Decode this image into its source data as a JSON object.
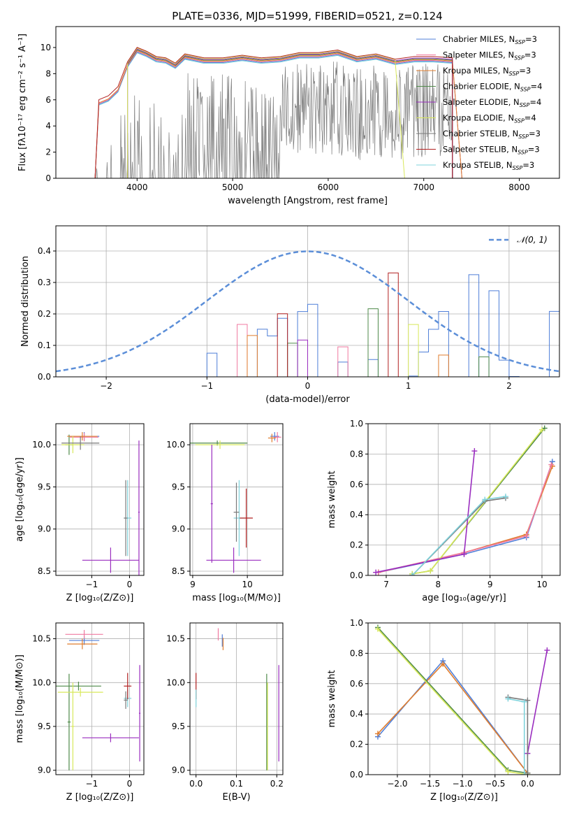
{
  "figure": {
    "title": "PLATE=0336, MJD=51999, FIBERID=0521, z=0.124"
  },
  "colors": {
    "Chabrier MILES": "#4f7fd8",
    "Salpeter MILES": "#f07aa0",
    "Kroupa MILES": "#e07d2e",
    "Chabrier ELODIE": "#4f8a4a",
    "Salpeter ELODIE": "#9a2dbf",
    "Kroupa ELODIE": "#d8e85a",
    "Chabrier STELIB": "#7a7a7a",
    "Salpeter STELIB": "#b22222",
    "Kroupa STELIB": "#7fd3dc",
    "normal": "#5b8ed8",
    "grid": "#b0b0b0"
  },
  "chart_data": [
    {
      "type": "line",
      "panel": "spectrum",
      "xlabel": "wavelength [Angstrom, rest frame]",
      "ylabel": "Flux [fλ10⁻¹⁷ erg cm⁻² s⁻¹ A⁻¹]",
      "xlim": [
        3150,
        8420
      ],
      "ylim": [
        0,
        11.6
      ],
      "xticks": [
        4000,
        5000,
        6000,
        7000,
        8000
      ],
      "yticks": [
        0,
        2,
        4,
        6,
        8,
        10
      ],
      "grid": false,
      "legend_position": "upper right",
      "data_wavelength": [
        3600,
        3700,
        3800,
        3900,
        4000,
        4100,
        4200,
        4300,
        4400,
        4500,
        4700,
        4900,
        5100,
        5300,
        5500,
        5700,
        5900,
        6100,
        6300,
        6500,
        6700,
        6900,
        7100,
        7300
      ],
      "data_flux": [
        5.8,
        6.4,
        7.2,
        8.6,
        9.4,
        9.8,
        9.3,
        9.0,
        8.4,
        9.3,
        8.9,
        9.2,
        9.3,
        9.0,
        9.2,
        9.6,
        9.4,
        9.6,
        9.0,
        9.4,
        9.1,
        9.3,
        9.4,
        9.4
      ],
      "model_flux": [
        5.8,
        6.1,
        6.8,
        8.7,
        9.8,
        9.5,
        9.1,
        9.0,
        8.6,
        9.3,
        9.0,
        9.0,
        9.2,
        9.0,
        9.1,
        9.4,
        9.4,
        9.6,
        9.1,
        9.3,
        8.9,
        9.1,
        9.1,
        9.0
      ],
      "series": [
        {
          "name": "Chabrier MILES, N_SSP=3",
          "label_main": "Chabrier MILES, N",
          "label_sub": "SSP",
          "label_tail": "=3",
          "color_key": "Chabrier MILES"
        },
        {
          "name": "Salpeter MILES, N_SSP=3",
          "label_main": "Salpeter MILES, N",
          "label_sub": "SSP",
          "label_tail": "=3",
          "color_key": "Salpeter MILES"
        },
        {
          "name": "Kroupa MILES, N_SSP=3",
          "label_main": "Kroupa MILES, N",
          "label_sub": "SSP",
          "label_tail": "=3",
          "color_key": "Kroupa MILES"
        },
        {
          "name": "Chabrier ELODIE, N_SSP=4",
          "label_main": "Chabrier ELODIE, N",
          "label_sub": "SSP",
          "label_tail": "=4",
          "color_key": "Chabrier ELODIE"
        },
        {
          "name": "Salpeter ELODIE, N_SSP=4",
          "label_main": "Salpeter ELODIE, N",
          "label_sub": "SSP",
          "label_tail": "=4",
          "color_key": "Salpeter ELODIE"
        },
        {
          "name": "Kroupa ELODIE, N_SSP=4",
          "label_main": "Kroupa ELODIE, N",
          "label_sub": "SSP",
          "label_tail": "=4",
          "color_key": "Kroupa ELODIE"
        },
        {
          "name": "Chabrier STELIB, N_SSP=3",
          "label_main": "Chabrier STELIB, N",
          "label_sub": "SSP",
          "label_tail": "=3",
          "color_key": "Chabrier STELIB"
        },
        {
          "name": "Salpeter STELIB, N_SSP=3",
          "label_main": "Salpeter STELIB, N",
          "label_sub": "SSP",
          "label_tail": "=3",
          "color_key": "Salpeter STELIB"
        },
        {
          "name": "Kroupa STELIB, N_SSP=3",
          "label_main": "Kroupa STELIB, N",
          "label_sub": "SSP",
          "label_tail": "=3",
          "color_key": "Kroupa STELIB"
        }
      ]
    },
    {
      "type": "histogram",
      "panel": "residuals",
      "xlabel": "(data-model)/error",
      "ylabel": "Normed distribution",
      "xlim": [
        -2.5,
        2.5
      ],
      "ylim": [
        0,
        0.48
      ],
      "xticks": [
        -2,
        -1,
        0,
        1,
        2
      ],
      "yticks": [
        0.0,
        0.1,
        0.2,
        0.3,
        0.4
      ],
      "grid": true,
      "bin_width": 0.1,
      "bin_start": -2.5,
      "base_density": [
        0.02,
        0.025,
        0.03,
        0.03,
        0.035,
        0.04,
        0.045,
        0.05,
        0.055,
        0.065,
        0.075,
        0.09,
        0.1,
        0.115,
        0.13,
        0.15,
        0.17,
        0.19,
        0.205,
        0.225,
        0.245,
        0.265,
        0.28,
        0.3,
        0.31,
        0.325,
        0.335,
        0.35,
        0.36,
        0.365,
        0.375,
        0.385,
        0.39,
        0.395,
        0.4,
        0.4,
        0.395,
        0.39,
        0.385,
        0.375,
        0.365,
        0.36,
        0.35,
        0.335,
        0.325,
        0.31,
        0.3,
        0.28,
        0.265,
        0.245,
        0.225,
        0.205,
        0.19,
        0.17,
        0.15,
        0.13,
        0.115,
        0.1,
        0.09,
        0.075,
        0.065,
        0.055,
        0.05,
        0.045,
        0.04,
        0.035,
        0.03,
        0.03,
        0.025,
        0.02
      ],
      "legend": {
        "name": "𝒩(0, 1)",
        "style": "dashed",
        "color_key": "normal"
      }
    },
    {
      "type": "scatter",
      "panel": "age-vs-metallicity",
      "xlabel": "Z [log₁₀(Z/Z⊙)]",
      "ylabel": "age  [log₁₀(age/yr)]",
      "xlim": [
        -1.95,
        0.38
      ],
      "ylim": [
        8.45,
        10.25
      ],
      "xticks": [
        -1,
        0
      ],
      "yticks": [
        8.5,
        9.0,
        9.5,
        10.0
      ],
      "grid": true,
      "points": [
        {
          "x": -1.6,
          "y": 10.0,
          "xerr": 0.1,
          "yerr": 0.12,
          "color_key": "Chabrier ELODIE"
        },
        {
          "x": -1.2,
          "y": 10.1,
          "xerr": 0.4,
          "yerr": 0.05,
          "color_key": "Chabrier MILES"
        },
        {
          "x": -1.2,
          "y": 10.09,
          "xerr": 0.38,
          "yerr": 0.05,
          "color_key": "Salpeter MILES"
        },
        {
          "x": -1.25,
          "y": 10.1,
          "xerr": 0.4,
          "yerr": 0.05,
          "color_key": "Kroupa MILES"
        },
        {
          "x": -1.5,
          "y": 10.0,
          "xerr": 0.3,
          "yerr": 0.1,
          "color_key": "Kroupa ELODIE"
        },
        {
          "x": -1.3,
          "y": 10.02,
          "xerr": 0.5,
          "yerr": 0.08,
          "color_key": "Chabrier STELIB"
        },
        {
          "x": -0.05,
          "y": 9.13,
          "xerr": 0.1,
          "yerr": 0.45,
          "color_key": "Kroupa STELIB"
        },
        {
          "x": -0.1,
          "y": 9.13,
          "xerr": 0.05,
          "yerr": 0.45,
          "color_key": "Chabrier STELIB"
        },
        {
          "x": -0.5,
          "y": 8.63,
          "xerr": 0.75,
          "yerr": 0.15,
          "color_key": "Salpeter ELODIE"
        },
        {
          "x": 0.25,
          "y": 9.2,
          "xerr": 0.02,
          "yerr": 0.85,
          "color_key": "Salpeter ELODIE"
        }
      ]
    },
    {
      "type": "scatter",
      "panel": "age-vs-mass",
      "xlabel": "mass [log₁₀(M/M⊙)]",
      "ylabel": "",
      "xlim": [
        8.95,
        10.65
      ],
      "ylim": [
        8.45,
        10.25
      ],
      "xticks": [
        9,
        10
      ],
      "yticks": [
        8.5,
        9.0,
        9.5,
        10.0
      ],
      "grid": true,
      "points": [
        {
          "x": 9.45,
          "y": 10.02,
          "xerr": 0.55,
          "yerr": 0.03,
          "color_key": "Chabrier ELODIE"
        },
        {
          "x": 9.5,
          "y": 10.0,
          "xerr": 0.45,
          "yerr": 0.05,
          "color_key": "Kroupa ELODIE"
        },
        {
          "x": 10.5,
          "y": 10.1,
          "xerr": 0.08,
          "yerr": 0.05,
          "color_key": "Chabrier MILES"
        },
        {
          "x": 10.55,
          "y": 10.09,
          "xerr": 0.07,
          "yerr": 0.06,
          "color_key": "Salpeter MILES"
        },
        {
          "x": 10.45,
          "y": 10.08,
          "xerr": 0.07,
          "yerr": 0.05,
          "color_key": "Kroupa MILES"
        },
        {
          "x": 9.85,
          "y": 9.13,
          "xerr": 0.1,
          "yerr": 0.45,
          "color_key": "Kroupa STELIB"
        },
        {
          "x": 9.8,
          "y": 9.2,
          "xerr": 0.05,
          "yerr": 0.35,
          "color_key": "Chabrier STELIB"
        },
        {
          "x": 9.98,
          "y": 9.13,
          "xerr": 0.12,
          "yerr": 0.35,
          "color_key": "Salpeter STELIB"
        },
        {
          "x": 9.75,
          "y": 8.63,
          "xerr": 0.5,
          "yerr": 0.15,
          "color_key": "Salpeter ELODIE"
        },
        {
          "x": 9.35,
          "y": 9.3,
          "xerr": 0.02,
          "yerr": 0.7,
          "color_key": "Salpeter ELODIE"
        }
      ]
    },
    {
      "type": "line",
      "panel": "mass-weight-vs-age",
      "xlabel": "age  [log₁₀(age/yr)]",
      "ylabel": "mass weight",
      "xlim": [
        6.65,
        10.35
      ],
      "ylim": [
        0,
        1.0
      ],
      "xticks": [
        7,
        8,
        9,
        10
      ],
      "yticks": [
        0.0,
        0.2,
        0.4,
        0.6,
        0.8,
        1.0
      ],
      "grid": true,
      "series": [
        {
          "color_key": "Chabrier MILES",
          "x": [
            6.85,
            8.5,
            9.7,
            10.2
          ],
          "y": [
            0.02,
            0.14,
            0.25,
            0.75
          ]
        },
        {
          "color_key": "Kroupa MILES",
          "x": [
            6.85,
            8.5,
            9.7,
            10.2
          ],
          "y": [
            0.02,
            0.15,
            0.27,
            0.72
          ]
        },
        {
          "color_key": "Salpeter MILES",
          "x": [
            6.85,
            8.5,
            9.7,
            10.18
          ],
          "y": [
            0.02,
            0.15,
            0.26,
            0.73
          ]
        },
        {
          "color_key": "Chabrier ELODIE",
          "x": [
            7.5,
            7.85,
            10.05
          ],
          "y": [
            0.01,
            0.03,
            0.97
          ]
        },
        {
          "color_key": "Kroupa ELODIE",
          "x": [
            7.5,
            7.85,
            10.0
          ],
          "y": [
            0.01,
            0.03,
            0.96
          ]
        },
        {
          "color_key": "Salpeter ELODIE",
          "x": [
            6.8,
            8.5,
            8.7
          ],
          "y": [
            0.02,
            0.14,
            0.82
          ]
        },
        {
          "color_key": "Chabrier STELIB",
          "x": [
            7.5,
            8.9,
            9.3
          ],
          "y": [
            0.0,
            0.49,
            0.51
          ]
        },
        {
          "color_key": "Kroupa STELIB",
          "x": [
            7.5,
            8.9,
            9.3
          ],
          "y": [
            0.0,
            0.5,
            0.52
          ]
        }
      ]
    },
    {
      "type": "scatter",
      "panel": "mass-vs-metallicity",
      "xlabel": "Z [log₁₀(Z/Z⊙)]",
      "ylabel": "mass [log₁₀(M/M⊙)]",
      "xlim": [
        -1.95,
        0.38
      ],
      "ylim": [
        8.95,
        10.68
      ],
      "xticks": [
        -1,
        0
      ],
      "yticks": [
        9.0,
        9.5,
        10.0,
        10.5
      ],
      "grid": true,
      "points": [
        {
          "x": -1.2,
          "y": 10.48,
          "xerr": 0.4,
          "yerr": 0.05,
          "color_key": "Chabrier MILES"
        },
        {
          "x": -1.2,
          "y": 10.55,
          "xerr": 0.5,
          "yerr": 0.05,
          "color_key": "Salpeter MILES"
        },
        {
          "x": -1.25,
          "y": 10.44,
          "xerr": 0.4,
          "yerr": 0.06,
          "color_key": "Kroupa MILES"
        },
        {
          "x": -1.6,
          "y": 9.55,
          "xerr": 0.04,
          "yerr": 0.55,
          "color_key": "Chabrier ELODIE"
        },
        {
          "x": -1.35,
          "y": 9.96,
          "xerr": 0.6,
          "yerr": 0.05,
          "color_key": "Chabrier ELODIE"
        },
        {
          "x": -1.5,
          "y": 9.5,
          "xerr": 0.04,
          "yerr": 0.5,
          "color_key": "Kroupa ELODIE"
        },
        {
          "x": -1.3,
          "y": 9.89,
          "xerr": 0.6,
          "yerr": 0.05,
          "color_key": "Kroupa ELODIE"
        },
        {
          "x": -0.5,
          "y": 9.37,
          "xerr": 0.75,
          "yerr": 0.05,
          "color_key": "Salpeter ELODIE"
        },
        {
          "x": 0.27,
          "y": 9.65,
          "xerr": 0.02,
          "yerr": 0.55,
          "color_key": "Salpeter ELODIE"
        },
        {
          "x": -0.05,
          "y": 9.82,
          "xerr": 0.1,
          "yerr": 0.1,
          "color_key": "Kroupa STELIB"
        },
        {
          "x": -0.1,
          "y": 9.8,
          "xerr": 0.05,
          "yerr": 0.1,
          "color_key": "Chabrier STELIB"
        },
        {
          "x": -0.05,
          "y": 9.96,
          "xerr": 0.1,
          "yerr": 0.15,
          "color_key": "Salpeter STELIB"
        }
      ]
    },
    {
      "type": "scatter",
      "panel": "mass-vs-reddening",
      "xlabel": "E(B-V)",
      "ylabel": "",
      "xlim": [
        -0.015,
        0.215
      ],
      "ylim": [
        8.95,
        10.68
      ],
      "xticks": [
        0.0,
        0.1,
        0.2
      ],
      "yticks": [
        9.0,
        9.5,
        10.0,
        10.5
      ],
      "grid": true,
      "points": [
        {
          "x": 0.055,
          "y": 10.55,
          "xerr": 0,
          "yerr": 0.07,
          "color_key": "Salpeter MILES"
        },
        {
          "x": 0.065,
          "y": 10.48,
          "xerr": 0,
          "yerr": 0.07,
          "color_key": "Chabrier MILES"
        },
        {
          "x": 0.067,
          "y": 10.44,
          "xerr": 0,
          "yerr": 0.07,
          "color_key": "Kroupa MILES"
        },
        {
          "x": 0.0,
          "y": 9.96,
          "xerr": 0,
          "yerr": 0.15,
          "color_key": "Salpeter STELIB"
        },
        {
          "x": 0.0,
          "y": 9.82,
          "xerr": 0,
          "yerr": 0.1,
          "color_key": "Kroupa STELIB"
        },
        {
          "x": 0.175,
          "y": 9.55,
          "xerr": 0,
          "yerr": 0.55,
          "color_key": "Chabrier ELODIE"
        },
        {
          "x": 0.177,
          "y": 9.5,
          "xerr": 0,
          "yerr": 0.5,
          "color_key": "Kroupa ELODIE"
        },
        {
          "x": 0.205,
          "y": 9.65,
          "xerr": 0,
          "yerr": 0.55,
          "color_key": "Salpeter ELODIE"
        }
      ]
    },
    {
      "type": "line",
      "panel": "mass-weight-vs-metallicity",
      "xlabel": "Z [log₁₀(Z/Z⊙)]",
      "ylabel": "mass weight",
      "xlim": [
        -2.45,
        0.5
      ],
      "ylim": [
        0,
        1.0
      ],
      "xticks": [
        -2.0,
        -1.5,
        -1.0,
        -0.5,
        0.0
      ],
      "yticks": [
        0.0,
        0.2,
        0.4,
        0.6,
        0.8,
        1.0
      ],
      "grid": true,
      "series": [
        {
          "color_key": "Chabrier MILES",
          "x": [
            -2.3,
            -1.3,
            0.0
          ],
          "y": [
            0.25,
            0.75,
            0.01
          ]
        },
        {
          "color_key": "Kroupa MILES",
          "x": [
            -2.3,
            -1.3,
            0.0
          ],
          "y": [
            0.27,
            0.73,
            0.01
          ]
        },
        {
          "color_key": "Chabrier ELODIE",
          "x": [
            -2.3,
            -0.3,
            0.0
          ],
          "y": [
            0.97,
            0.03,
            0.01
          ]
        },
        {
          "color_key": "Kroupa ELODIE",
          "x": [
            -2.3,
            -0.3,
            0.0
          ],
          "y": [
            0.96,
            0.02,
            0.0
          ]
        },
        {
          "color_key": "Salpeter ELODIE",
          "x": [
            0.0,
            0.3
          ],
          "y": [
            0.14,
            0.82
          ]
        },
        {
          "color_key": "Chabrier STELIB",
          "x": [
            -0.3,
            0.0,
            0.0
          ],
          "y": [
            0.51,
            0.49,
            0.01
          ]
        },
        {
          "color_key": "Kroupa STELIB",
          "x": [
            -0.3,
            -0.05,
            -0.05
          ],
          "y": [
            0.5,
            0.48,
            0.0
          ]
        }
      ]
    }
  ]
}
